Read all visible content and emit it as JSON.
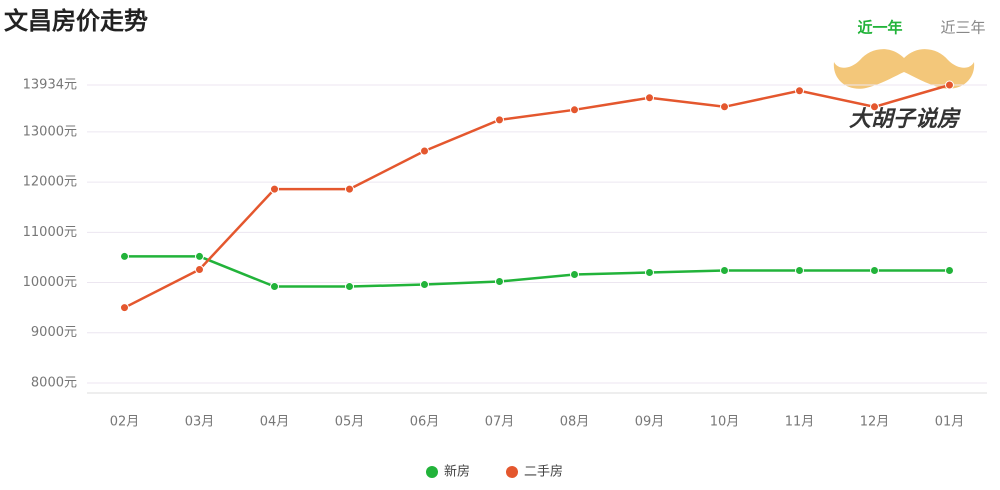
{
  "chart_data": {
    "type": "line",
    "title": "文昌房价走势",
    "tabs": [
      "近一年",
      "近三年"
    ],
    "active_tab": 0,
    "watermark": "大胡子说房",
    "categories": [
      "02月",
      "03月",
      "04月",
      "05月",
      "06月",
      "07月",
      "08月",
      "09月",
      "10月",
      "11月",
      "12月",
      "01月"
    ],
    "series": [
      {
        "name": "新房",
        "color": "#22b33a",
        "values": [
          10520,
          10520,
          9920,
          9920,
          9960,
          10020,
          10160,
          10200,
          10240,
          10240,
          10240,
          10240
        ]
      },
      {
        "name": "二手房",
        "color": "#e4572e",
        "values": [
          9500,
          10260,
          11860,
          11860,
          12620,
          13240,
          13440,
          13680,
          13500,
          13820,
          13500,
          13934
        ]
      }
    ],
    "ylim": [
      7800,
      13934
    ],
    "yticks": [
      {
        "value": 8000,
        "label": "8000元"
      },
      {
        "value": 9000,
        "label": "9000元"
      },
      {
        "value": 10000,
        "label": "10000元"
      },
      {
        "value": 11000,
        "label": "11000元"
      },
      {
        "value": 12000,
        "label": "12000元"
      },
      {
        "value": 13000,
        "label": "13000元"
      },
      {
        "value": 13934,
        "label": "13934元"
      }
    ],
    "grid": true
  }
}
